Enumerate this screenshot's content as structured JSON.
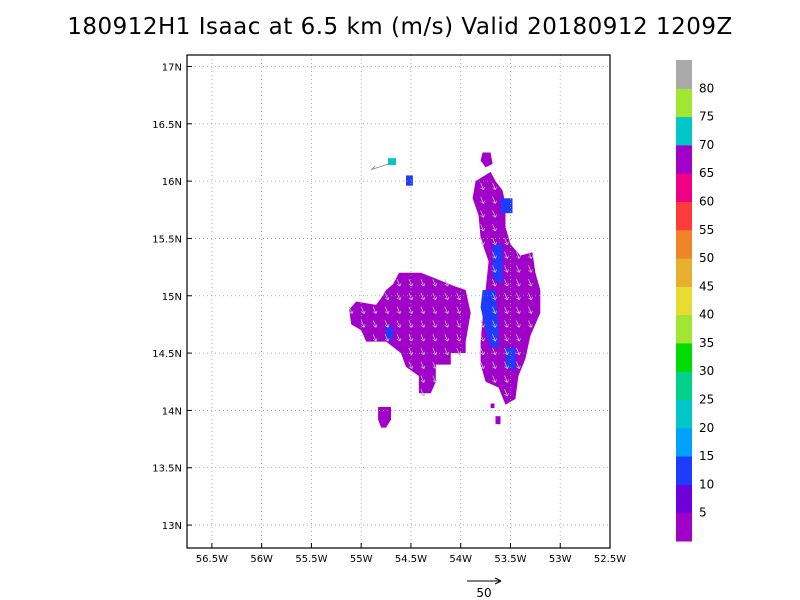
{
  "title": "180912H1 Isaac at 6.5 km (m/s) Valid 20180912  1209Z",
  "colors": {
    "frame": "#000000",
    "grid": "#9a9a9a",
    "arrow": "#bbbbbb"
  },
  "chart_data": {
    "type": "heatmap",
    "title": "180912H1 Isaac at 6.5 km (m/s) Valid 20180912  1209Z",
    "xlabel": "",
    "ylabel": "",
    "xlim": [
      -56.75,
      -52.5
    ],
    "ylim": [
      12.8,
      17.1
    ],
    "x_ticks": [
      {
        "value": -56.5,
        "label": "56.5W"
      },
      {
        "value": -56,
        "label": "56W"
      },
      {
        "value": -55.5,
        "label": "55.5W"
      },
      {
        "value": -55,
        "label": "55W"
      },
      {
        "value": -54.5,
        "label": "54.5W"
      },
      {
        "value": -54,
        "label": "54W"
      },
      {
        "value": -53.5,
        "label": "53.5W"
      },
      {
        "value": -53,
        "label": "53W"
      },
      {
        "value": -52.5,
        "label": "52.5W"
      }
    ],
    "y_ticks": [
      {
        "value": 13,
        "label": "13N"
      },
      {
        "value": 13.5,
        "label": "13.5N"
      },
      {
        "value": 14,
        "label": "14N"
      },
      {
        "value": 14.5,
        "label": "14.5N"
      },
      {
        "value": 15,
        "label": "15N"
      },
      {
        "value": 15.5,
        "label": "15.5N"
      },
      {
        "value": 16,
        "label": "16N"
      },
      {
        "value": 16.5,
        "label": "16.5N"
      },
      {
        "value": 17,
        "label": "17N"
      }
    ],
    "grid": true,
    "colorbar": {
      "colors": [
        "#a000c8",
        "#6e00dc",
        "#1e3cff",
        "#00a0ff",
        "#00c8c8",
        "#00d28c",
        "#00dc00",
        "#a0e632",
        "#e6dc32",
        "#e6af2d",
        "#f08228",
        "#fa3c3c",
        "#f00082",
        "#a000c8",
        "#00c8c8",
        "#a0e632",
        "#aaaaaa"
      ],
      "labels": [
        "5",
        "10",
        "15",
        "20",
        "25",
        "30",
        "35",
        "40",
        "45",
        "50",
        "55",
        "60",
        "65",
        "70",
        "75",
        "80"
      ]
    },
    "reference_vector": {
      "label": "50",
      "value": 50
    },
    "regions": [
      {
        "name": "west-lobe-purple",
        "speed_class": "5-10 m/s",
        "color": "#a000c8",
        "polygon": [
          [
            -55.12,
            14.88
          ],
          [
            -55.05,
            14.95
          ],
          [
            -54.85,
            14.92
          ],
          [
            -54.8,
            14.98
          ],
          [
            -54.75,
            15.05
          ],
          [
            -54.68,
            15.1
          ],
          [
            -54.62,
            15.2
          ],
          [
            -54.4,
            15.2
          ],
          [
            -54.25,
            15.15
          ],
          [
            -54.05,
            15.08
          ],
          [
            -53.95,
            15.05
          ],
          [
            -53.9,
            14.85
          ],
          [
            -53.95,
            14.6
          ],
          [
            -53.95,
            14.5
          ],
          [
            -54.1,
            14.5
          ],
          [
            -54.1,
            14.4
          ],
          [
            -54.25,
            14.4
          ],
          [
            -54.25,
            14.25
          ],
          [
            -54.3,
            14.15
          ],
          [
            -54.42,
            14.15
          ],
          [
            -54.42,
            14.3
          ],
          [
            -54.55,
            14.38
          ],
          [
            -54.6,
            14.5
          ],
          [
            -54.75,
            14.6
          ],
          [
            -54.95,
            14.6
          ],
          [
            -55.0,
            14.7
          ],
          [
            -55.1,
            14.75
          ]
        ]
      },
      {
        "name": "east-arm-purple",
        "speed_class": "5-10 m/s",
        "color": "#a000c8",
        "polygon": [
          [
            -53.85,
            16.0
          ],
          [
            -53.7,
            16.08
          ],
          [
            -53.65,
            16.0
          ],
          [
            -53.58,
            15.92
          ],
          [
            -53.55,
            15.8
          ],
          [
            -53.55,
            15.6
          ],
          [
            -53.5,
            15.45
          ],
          [
            -53.4,
            15.35
          ],
          [
            -53.28,
            15.38
          ],
          [
            -53.25,
            15.2
          ],
          [
            -53.2,
            15.05
          ],
          [
            -53.2,
            14.85
          ],
          [
            -53.3,
            14.65
          ],
          [
            -53.35,
            14.45
          ],
          [
            -53.42,
            14.3
          ],
          [
            -53.45,
            14.1
          ],
          [
            -53.55,
            14.05
          ],
          [
            -53.62,
            14.2
          ],
          [
            -53.75,
            14.25
          ],
          [
            -53.8,
            14.4
          ],
          [
            -53.8,
            14.6
          ],
          [
            -53.78,
            14.8
          ],
          [
            -53.75,
            15.05
          ],
          [
            -53.72,
            15.3
          ],
          [
            -53.8,
            15.5
          ],
          [
            -53.82,
            15.7
          ],
          [
            -53.88,
            15.85
          ]
        ]
      },
      {
        "name": "south-blob-purple",
        "speed_class": "5-10 m/s",
        "color": "#a000c8",
        "polygon": [
          [
            -54.83,
            14.03
          ],
          [
            -54.7,
            14.03
          ],
          [
            -54.7,
            13.92
          ],
          [
            -54.75,
            13.85
          ],
          [
            -54.8,
            13.85
          ],
          [
            -54.83,
            13.92
          ]
        ]
      },
      {
        "name": "north-tower-purple",
        "speed_class": "5-10 m/s",
        "color": "#a000c8",
        "polygon": [
          [
            -53.78,
            16.25
          ],
          [
            -53.7,
            16.25
          ],
          [
            -53.68,
            16.15
          ],
          [
            -53.75,
            16.12
          ],
          [
            -53.8,
            16.18
          ]
        ]
      },
      {
        "name": "east-band-blue",
        "speed_class": "10-15 m/s",
        "color": "#1e3cff",
        "polygon": [
          [
            -53.78,
            15.05
          ],
          [
            -53.65,
            15.05
          ],
          [
            -53.62,
            14.75
          ],
          [
            -53.62,
            14.55
          ],
          [
            -53.7,
            14.55
          ],
          [
            -53.75,
            14.7
          ],
          [
            -53.8,
            14.9
          ]
        ]
      },
      {
        "name": "east-upper-blue",
        "speed_class": "10-15 m/s",
        "color": "#1e3cff",
        "polygon": [
          [
            -53.68,
            15.45
          ],
          [
            -53.58,
            15.45
          ],
          [
            -53.58,
            15.1
          ],
          [
            -53.68,
            15.15
          ]
        ]
      },
      {
        "name": "north-blue",
        "speed_class": "10-15 m/s",
        "color": "#1e3cff",
        "polygon": [
          [
            -53.6,
            15.85
          ],
          [
            -53.48,
            15.85
          ],
          [
            -53.48,
            15.72
          ],
          [
            -53.6,
            15.72
          ]
        ]
      },
      {
        "name": "south-blue",
        "speed_class": "10-15 m/s",
        "color": "#1e3cff",
        "polygon": [
          [
            -53.55,
            14.55
          ],
          [
            -53.45,
            14.55
          ],
          [
            -53.45,
            14.35
          ],
          [
            -53.55,
            14.38
          ]
        ]
      },
      {
        "name": "west-blue",
        "speed_class": "10-15 m/s",
        "color": "#1e3cff",
        "polygon": [
          [
            -54.75,
            14.73
          ],
          [
            -54.68,
            14.73
          ],
          [
            -54.68,
            14.62
          ],
          [
            -54.75,
            14.62
          ]
        ]
      },
      {
        "name": "isolated-blue",
        "speed_class": "10-15 m/s",
        "color": "#1e3cff",
        "polygon": [
          [
            -54.55,
            16.05
          ],
          [
            -54.48,
            16.05
          ],
          [
            -54.48,
            15.96
          ],
          [
            -54.55,
            15.96
          ]
        ]
      },
      {
        "name": "isolated-cyan",
        "speed_class": "20-25 m/s",
        "color": "#00c8c8",
        "polygon": [
          [
            -54.73,
            16.2
          ],
          [
            -54.65,
            16.2
          ],
          [
            -54.65,
            16.14
          ],
          [
            -54.73,
            16.14
          ]
        ]
      },
      {
        "name": "tiny-purple-a",
        "speed_class": "5-10 m/s",
        "color": "#a000c8",
        "polygon": [
          [
            -53.65,
            13.95
          ],
          [
            -53.6,
            13.95
          ],
          [
            -53.6,
            13.88
          ],
          [
            -53.65,
            13.88
          ]
        ]
      },
      {
        "name": "tiny-purple-b",
        "speed_class": "5-10 m/s",
        "color": "#a000c8",
        "polygon": [
          [
            -53.7,
            14.06
          ],
          [
            -53.66,
            14.06
          ],
          [
            -53.66,
            14.02
          ],
          [
            -53.7,
            14.02
          ]
        ]
      }
    ]
  }
}
